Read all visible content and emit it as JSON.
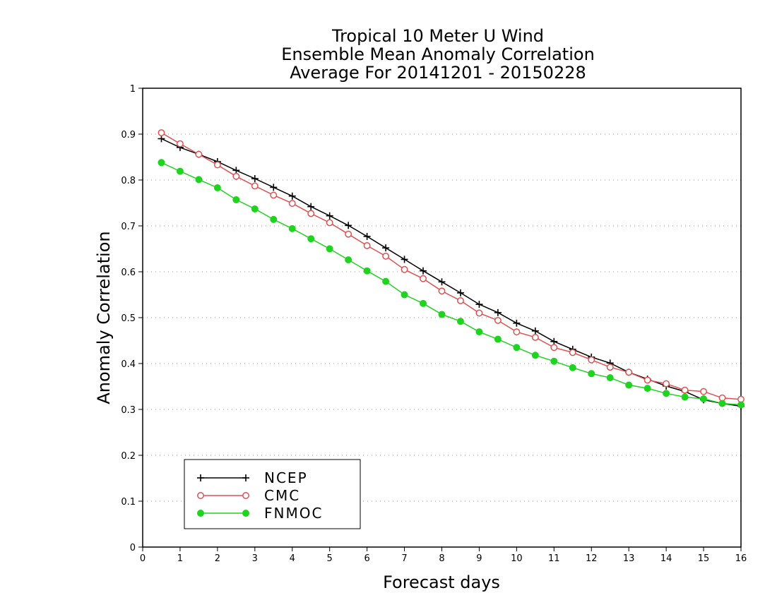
{
  "chart_data": {
    "type": "line",
    "title": [
      "Tropical 10 Meter U Wind",
      "Ensemble Mean Anomaly Correlation",
      "Average For 20141201 - 20150228"
    ],
    "xlabel": "Forecast days",
    "ylabel": "Anomaly Correlation",
    "xlim": [
      0,
      16
    ],
    "ylim": [
      0,
      1
    ],
    "xticks": [
      0,
      1,
      2,
      3,
      4,
      5,
      6,
      7,
      8,
      9,
      10,
      11,
      12,
      13,
      14,
      15,
      16
    ],
    "yticks": [
      "0",
      "0.1",
      "0.2",
      "0.3",
      "0.4",
      "0.5",
      "0.6",
      "0.7",
      "0.8",
      "0.9",
      "1"
    ],
    "grid": true,
    "legend_position": "bottom-left",
    "x": [
      0.5,
      1,
      1.5,
      2,
      2.5,
      3,
      3.5,
      4,
      4.5,
      5,
      5.5,
      6,
      6.5,
      7,
      7.5,
      8,
      8.5,
      9,
      9.5,
      10,
      10.5,
      11,
      11.5,
      12,
      12.5,
      13,
      13.5,
      14,
      14.5,
      15,
      15.5,
      16
    ],
    "series": [
      {
        "name": "NCEP",
        "color": "#000000",
        "marker": "plus",
        "values": [
          0.89,
          0.871,
          0.856,
          0.84,
          0.821,
          0.803,
          0.784,
          0.765,
          0.742,
          0.722,
          0.701,
          0.677,
          0.652,
          0.627,
          0.602,
          0.578,
          0.554,
          0.529,
          0.511,
          0.488,
          0.471,
          0.448,
          0.431,
          0.414,
          0.401,
          0.381,
          0.366,
          0.351,
          0.339,
          0.321,
          0.313,
          0.307
        ]
      },
      {
        "name": "CMC",
        "color": "#e05050",
        "marker": "circle-open",
        "values": [
          0.903,
          0.879,
          0.856,
          0.833,
          0.808,
          0.787,
          0.767,
          0.749,
          0.727,
          0.707,
          0.682,
          0.657,
          0.634,
          0.605,
          0.585,
          0.558,
          0.537,
          0.51,
          0.494,
          0.469,
          0.457,
          0.435,
          0.424,
          0.408,
          0.392,
          0.381,
          0.364,
          0.356,
          0.342,
          0.339,
          0.325,
          0.322
        ]
      },
      {
        "name": "FNMOC",
        "color": "#1ed41e",
        "marker": "circle-filled",
        "values": [
          0.838,
          0.819,
          0.801,
          0.783,
          0.757,
          0.737,
          0.714,
          0.694,
          0.672,
          0.65,
          0.626,
          0.602,
          0.579,
          0.55,
          0.531,
          0.507,
          0.492,
          0.469,
          0.453,
          0.435,
          0.418,
          0.405,
          0.391,
          0.378,
          0.369,
          0.353,
          0.346,
          0.335,
          0.327,
          0.323,
          0.313,
          0.31
        ]
      }
    ]
  }
}
